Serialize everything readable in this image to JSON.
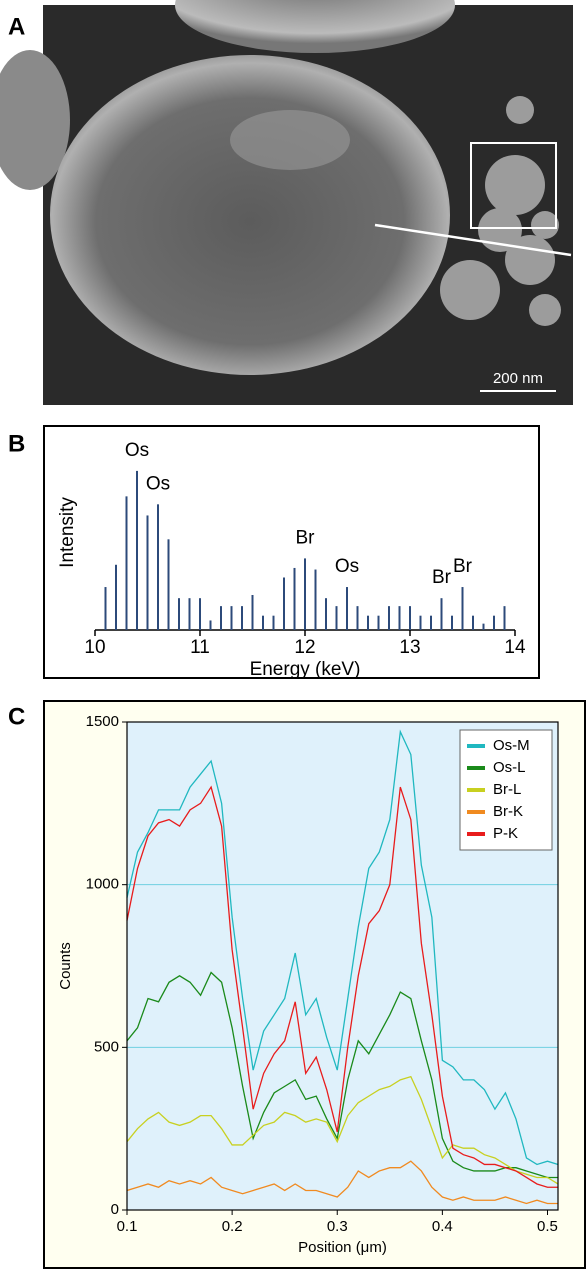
{
  "panels": [
    "A",
    "B",
    "C"
  ],
  "image": {
    "scale_bar": "200 nm"
  },
  "chart_data": [
    {
      "type": "bar",
      "y_label": "Intensity",
      "x_label": "Energy (keV)",
      "color": "#2c4a7a",
      "x": [
        10.1,
        10.2,
        10.3,
        10.4,
        10.5,
        10.6,
        10.7,
        10.8,
        10.9,
        11.0,
        11.1,
        11.2,
        11.3,
        11.4,
        11.5,
        11.6,
        11.7,
        11.8,
        11.9,
        12.0,
        12.1,
        12.2,
        12.3,
        12.4,
        12.5,
        12.6,
        12.7,
        12.8,
        12.9,
        13.0,
        13.1,
        13.2,
        13.3,
        13.4,
        13.5,
        13.6,
        13.7,
        13.8,
        13.9
      ],
      "values": [
        27,
        41,
        84,
        100,
        72,
        79,
        57,
        20,
        20,
        20,
        6,
        15,
        15,
        15,
        22,
        9,
        9,
        33,
        39,
        45,
        38,
        20,
        15,
        27,
        15,
        9,
        9,
        15,
        15,
        15,
        9,
        9,
        20,
        9,
        27,
        9,
        4,
        9,
        15
      ],
      "xlim": [
        10,
        14
      ],
      "xticks": [
        10,
        11,
        12,
        13,
        14
      ],
      "ylim": [
        0,
        110
      ],
      "annotations": [
        {
          "text": "Os",
          "x": 10.4
        },
        {
          "text": "Os",
          "x": 10.6
        },
        {
          "text": "Br",
          "x": 12.0
        },
        {
          "text": "Os",
          "x": 12.4
        },
        {
          "text": "Br",
          "x": 13.3
        },
        {
          "text": "Br",
          "x": 13.5
        }
      ]
    },
    {
      "type": "line",
      "y_label": "Counts",
      "x_label": "Position (μm)",
      "legend": "upper right",
      "grid": true,
      "xlim": [
        0.1,
        0.51
      ],
      "xticks": [
        0.1,
        0.2,
        0.3,
        0.4,
        0.5
      ],
      "ylim": [
        0,
        1500
      ],
      "yticks": [
        0,
        500,
        1000,
        1500
      ],
      "x": [
        0.1,
        0.11,
        0.12,
        0.13,
        0.14,
        0.15,
        0.16,
        0.17,
        0.18,
        0.19,
        0.2,
        0.21,
        0.22,
        0.23,
        0.24,
        0.25,
        0.26,
        0.27,
        0.28,
        0.29,
        0.3,
        0.31,
        0.32,
        0.33,
        0.34,
        0.35,
        0.36,
        0.37,
        0.38,
        0.39,
        0.4,
        0.41,
        0.42,
        0.43,
        0.44,
        0.45,
        0.46,
        0.47,
        0.48,
        0.49,
        0.5,
        0.51
      ],
      "series": [
        {
          "name": "Os-M",
          "color": "#20b8c0",
          "values": [
            960,
            1100,
            1160,
            1230,
            1230,
            1230,
            1300,
            1340,
            1380,
            1250,
            900,
            650,
            430,
            550,
            600,
            650,
            790,
            600,
            650,
            530,
            430,
            650,
            870,
            1050,
            1100,
            1200,
            1470,
            1400,
            1060,
            900,
            460,
            440,
            400,
            400,
            370,
            310,
            360,
            280,
            160,
            140,
            150,
            140
          ]
        },
        {
          "name": "Os-L",
          "color": "#1a8a1a",
          "values": [
            520,
            560,
            650,
            640,
            700,
            720,
            700,
            660,
            730,
            700,
            560,
            380,
            220,
            300,
            360,
            380,
            400,
            340,
            350,
            280,
            220,
            400,
            520,
            480,
            540,
            600,
            670,
            650,
            520,
            400,
            220,
            150,
            130,
            120,
            120,
            120,
            130,
            130,
            120,
            110,
            100,
            100
          ]
        },
        {
          "name": "Br-L",
          "color": "#c8d020",
          "values": [
            210,
            250,
            280,
            300,
            270,
            260,
            270,
            290,
            290,
            250,
            200,
            200,
            230,
            260,
            270,
            300,
            290,
            270,
            280,
            270,
            210,
            290,
            330,
            350,
            370,
            380,
            400,
            410,
            340,
            250,
            160,
            200,
            190,
            190,
            170,
            160,
            140,
            120,
            110,
            100,
            100,
            80
          ]
        },
        {
          "name": "Br-K",
          "color": "#f08a20",
          "values": [
            60,
            70,
            80,
            70,
            90,
            80,
            90,
            80,
            100,
            70,
            60,
            50,
            60,
            70,
            80,
            60,
            80,
            60,
            60,
            50,
            40,
            70,
            120,
            100,
            120,
            130,
            130,
            150,
            120,
            70,
            40,
            30,
            40,
            30,
            30,
            30,
            40,
            30,
            20,
            30,
            20,
            20
          ]
        },
        {
          "name": "P-K",
          "color": "#e81c1c",
          "values": [
            890,
            1050,
            1150,
            1190,
            1200,
            1180,
            1230,
            1250,
            1300,
            1180,
            800,
            560,
            310,
            420,
            480,
            520,
            640,
            420,
            470,
            370,
            240,
            500,
            720,
            880,
            920,
            1000,
            1300,
            1200,
            820,
            600,
            350,
            190,
            170,
            160,
            140,
            140,
            130,
            120,
            100,
            80,
            70,
            70
          ]
        }
      ]
    }
  ]
}
